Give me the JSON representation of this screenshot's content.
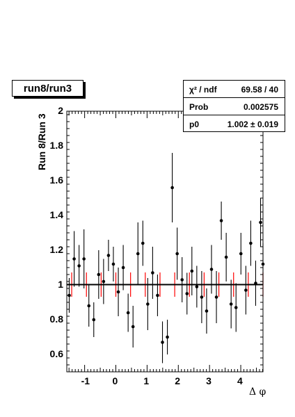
{
  "chart_data": {
    "type": "scatter",
    "title": "run8/run3",
    "ylabel": "Run 8/Run 3",
    "xlabel": "Δ φ",
    "xlim": [
      -1.571,
      4.712
    ],
    "ylim": [
      0.5,
      2.0
    ],
    "x_ticks": [
      -1,
      0,
      1,
      2,
      3,
      4
    ],
    "y_ticks": [
      0.6,
      0.8,
      1.0,
      1.2,
      1.4,
      1.6,
      1.8,
      2.0
    ],
    "x_tick_labels": [
      "-1",
      "0",
      "1",
      "2",
      "3",
      "4"
    ],
    "y_tick_labels": [
      "0.6",
      "0.8",
      "1",
      "1.2",
      "1.4",
      "1.6",
      "1.8",
      "2"
    ],
    "fit_constant": 1.002,
    "stats": {
      "chi2_label": "χ² / ndf",
      "chi2_value": "69.58 / 40",
      "prob_label": "Prob",
      "prob_value": "0.002575",
      "p0_label": "p0",
      "p0_value": "1.002 ± 0.019"
    },
    "series": [
      {
        "x": [
          -1.493,
          -1.335,
          -1.178,
          -1.021,
          -0.864,
          -0.707,
          -0.55,
          -0.393,
          -0.236,
          -0.079,
          0.079,
          0.236,
          0.393,
          0.55,
          0.707,
          0.864,
          1.021,
          1.178,
          1.335,
          1.493,
          1.65,
          1.807,
          1.964,
          2.121,
          2.278,
          2.435,
          2.592,
          2.749,
          2.906,
          3.063,
          3.22,
          3.377,
          3.534,
          3.691,
          3.848,
          4.005,
          4.163,
          4.32,
          4.477,
          4.634
        ],
        "y": [
          0.94,
          1.15,
          1.11,
          1.15,
          0.88,
          0.8,
          1.06,
          1.02,
          1.17,
          1.12,
          0.96,
          1.1,
          0.84,
          0.76,
          1.18,
          1.24,
          0.89,
          1.07,
          0.94,
          0.67,
          0.7,
          1.56,
          1.18,
          1.03,
          0.95,
          1.08,
          0.99,
          0.93,
          0.85,
          1.09,
          0.93,
          1.37,
          1.16,
          0.89,
          0.87,
          1.18,
          0.97,
          1.24,
          1.01,
          1.36
        ],
        "err": [
          0.1,
          0.16,
          0.12,
          0.17,
          0.12,
          0.1,
          0.14,
          0.13,
          0.09,
          0.1,
          0.14,
          0.13,
          0.11,
          0.12,
          0.18,
          0.13,
          0.15,
          0.15,
          0.12,
          0.12,
          0.1,
          0.2,
          0.15,
          0.13,
          0.12,
          0.14,
          0.12,
          0.15,
          0.13,
          0.14,
          0.15,
          0.11,
          0.14,
          0.14,
          0.14,
          0.12,
          0.14,
          0.13,
          0.13,
          0.14
        ]
      },
      {
        "x": [
          4.712
        ],
        "y": [
          1.12
        ],
        "err": [
          0.12
        ]
      }
    ],
    "reference_bars": {
      "x": [
        -1.414,
        -0.942,
        -0.471,
        0.0,
        0.471,
        0.942,
        1.414,
        1.885,
        2.356,
        2.827,
        3.299,
        3.77,
        4.241,
        4.712
      ],
      "err": [
        0.07,
        0.07,
        0.07,
        0.07,
        0.07,
        0.07,
        0.07,
        0.07,
        0.07,
        0.07,
        0.07,
        0.07,
        0.07,
        0.07
      ]
    },
    "colors": {
      "markers": "#000000",
      "fit_line": "#000000",
      "reference_bars": "#ff0000"
    }
  }
}
